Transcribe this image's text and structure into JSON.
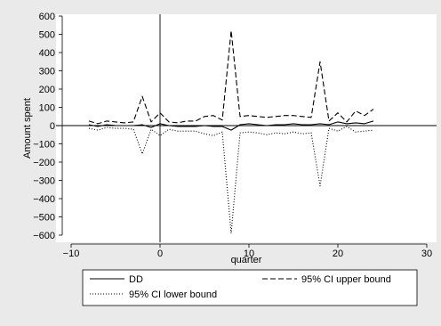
{
  "chart_data": {
    "type": "line",
    "title": "",
    "xlabel": "quarter",
    "ylabel": "Amount spent",
    "xlim": [
      -10,
      30
    ],
    "ylim": [
      -600,
      600
    ],
    "xticks": [
      -10,
      0,
      10,
      20,
      30
    ],
    "xtick_labels": [
      "−10",
      "0",
      "10",
      "20",
      "30"
    ],
    "yticks": [
      -600,
      -500,
      -400,
      -300,
      -200,
      -100,
      0,
      100,
      200,
      300,
      400,
      500,
      600
    ],
    "ytick_labels": [
      "−600",
      "−500",
      "−400",
      "−300",
      "−200",
      "−100",
      "0",
      "100",
      "200",
      "300",
      "400",
      "500",
      "600"
    ],
    "grid": false,
    "reference_lines": {
      "x": 0,
      "y": 0
    },
    "legend_position": "bottom",
    "x": [
      -8,
      -7,
      -6,
      -5,
      -4,
      -3,
      -2,
      -1,
      0,
      1,
      2,
      3,
      4,
      5,
      6,
      7,
      8,
      9,
      10,
      11,
      12,
      13,
      14,
      15,
      16,
      17,
      18,
      19,
      20,
      21,
      22,
      23,
      24
    ],
    "series": [
      {
        "name": "DD",
        "style": "solid",
        "values": [
          5,
          -5,
          5,
          0,
          0,
          0,
          5,
          -10,
          10,
          0,
          -5,
          -5,
          -5,
          0,
          -5,
          -5,
          -25,
          5,
          10,
          5,
          0,
          5,
          5,
          10,
          5,
          5,
          10,
          5,
          20,
          10,
          15,
          10,
          25
        ]
      },
      {
        "name": "95% CI upper bound",
        "style": "dashed",
        "values": [
          25,
          10,
          25,
          20,
          15,
          20,
          160,
          20,
          70,
          20,
          15,
          25,
          25,
          50,
          55,
          30,
          520,
          50,
          55,
          50,
          45,
          50,
          55,
          55,
          50,
          45,
          350,
          25,
          70,
          20,
          80,
          55,
          90
        ]
      },
      {
        "name": "95% CI lower bound",
        "style": "dotted",
        "values": [
          -15,
          -25,
          -10,
          -15,
          -15,
          -20,
          -155,
          -20,
          -55,
          -20,
          -30,
          -30,
          -30,
          -45,
          -55,
          -35,
          -590,
          -40,
          -35,
          -40,
          -50,
          -40,
          -45,
          -35,
          -45,
          -40,
          -330,
          -15,
          -30,
          -5,
          -35,
          -30,
          -25
        ]
      }
    ]
  }
}
